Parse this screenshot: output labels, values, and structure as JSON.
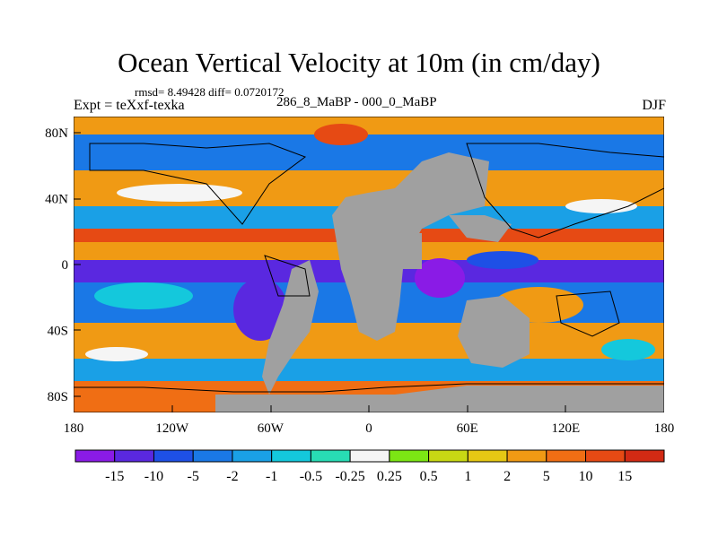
{
  "header": {
    "title": "Ocean Vertical Velocity at 10m (in cm/day)",
    "stats": "rmsd= 8.49428 diff= 0.0720172",
    "experiment": "Expt = teXxf-texka",
    "difference": "286_8_MaBP - 000_0_MaBP",
    "season": "DJF"
  },
  "map": {
    "lat_ticks": [
      "80N",
      "40N",
      "0",
      "40S",
      "80S"
    ],
    "lat_values": [
      80,
      40,
      0,
      -40,
      -80
    ],
    "lon_ticks": [
      "180",
      "120W",
      "60W",
      "0",
      "60E",
      "120E",
      "180"
    ],
    "lon_values": [
      -180,
      -120,
      -60,
      0,
      60,
      120,
      180
    ],
    "land_color": "#a0a0a0"
  },
  "colorbar": {
    "labels": [
      "-15",
      "-10",
      "-5",
      "-2",
      "-1",
      "-0.5",
      "-0.25",
      "0.25",
      "0.5",
      "1",
      "2",
      "5",
      "10",
      "15"
    ],
    "colors": [
      "#8a1be6",
      "#5a28e0",
      "#1e50e6",
      "#1a78e6",
      "#1aa0e6",
      "#14c8dc",
      "#28dcb4",
      "#f5f5f5",
      "#7ce614",
      "#c8d814",
      "#e6c814",
      "#f09a14",
      "#f06e14",
      "#e64a14",
      "#d22a14"
    ]
  }
}
